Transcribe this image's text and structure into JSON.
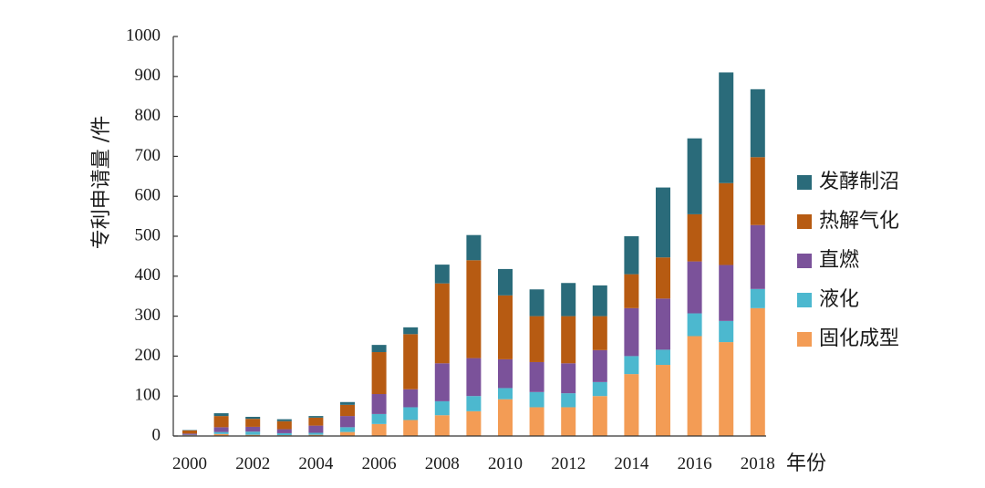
{
  "chart_data": {
    "type": "bar",
    "stacked": true,
    "title": "",
    "xlabel": "年份",
    "ylabel": "专利申请量 /件",
    "ylim": [
      0,
      1000
    ],
    "yticks": [
      0,
      100,
      200,
      300,
      400,
      500,
      600,
      700,
      800,
      900,
      1000
    ],
    "xtick_labels": [
      "2000",
      "2002",
      "2004",
      "2006",
      "2008",
      "2010",
      "2012",
      "2014",
      "2016",
      "2018"
    ],
    "legend_position": "right",
    "categories": [
      "2000",
      "2001",
      "2002",
      "2003",
      "2004",
      "2005",
      "2006",
      "2007",
      "2008",
      "2009",
      "2010",
      "2011",
      "2012",
      "2013",
      "2014",
      "2015",
      "2016",
      "2017",
      "2018"
    ],
    "series": [
      {
        "name": "固化成型",
        "color": "#f39c55",
        "values": [
          2,
          5,
          3,
          2,
          3,
          10,
          30,
          40,
          52,
          62,
          92,
          72,
          72,
          100,
          155,
          178,
          250,
          235,
          320
        ]
      },
      {
        "name": "液化",
        "color": "#4cb8cf",
        "values": [
          1,
          5,
          8,
          5,
          5,
          12,
          25,
          32,
          35,
          38,
          28,
          38,
          35,
          35,
          45,
          38,
          57,
          53,
          48
        ]
      },
      {
        "name": "直燃",
        "color": "#7b529a",
        "values": [
          3,
          12,
          12,
          10,
          18,
          28,
          50,
          45,
          95,
          95,
          72,
          75,
          75,
          80,
          120,
          128,
          130,
          140,
          160
        ]
      },
      {
        "name": "热解气化",
        "color": "#b75b12",
        "values": [
          8,
          28,
          20,
          20,
          20,
          28,
          105,
          138,
          200,
          245,
          160,
          115,
          118,
          85,
          85,
          103,
          118,
          205,
          170
        ]
      },
      {
        "name": "发酵制沼",
        "color": "#2a6b7a",
        "values": [
          1,
          7,
          5,
          5,
          4,
          7,
          18,
          17,
          47,
          63,
          66,
          67,
          83,
          77,
          95,
          175,
          190,
          277,
          170
        ]
      }
    ]
  }
}
